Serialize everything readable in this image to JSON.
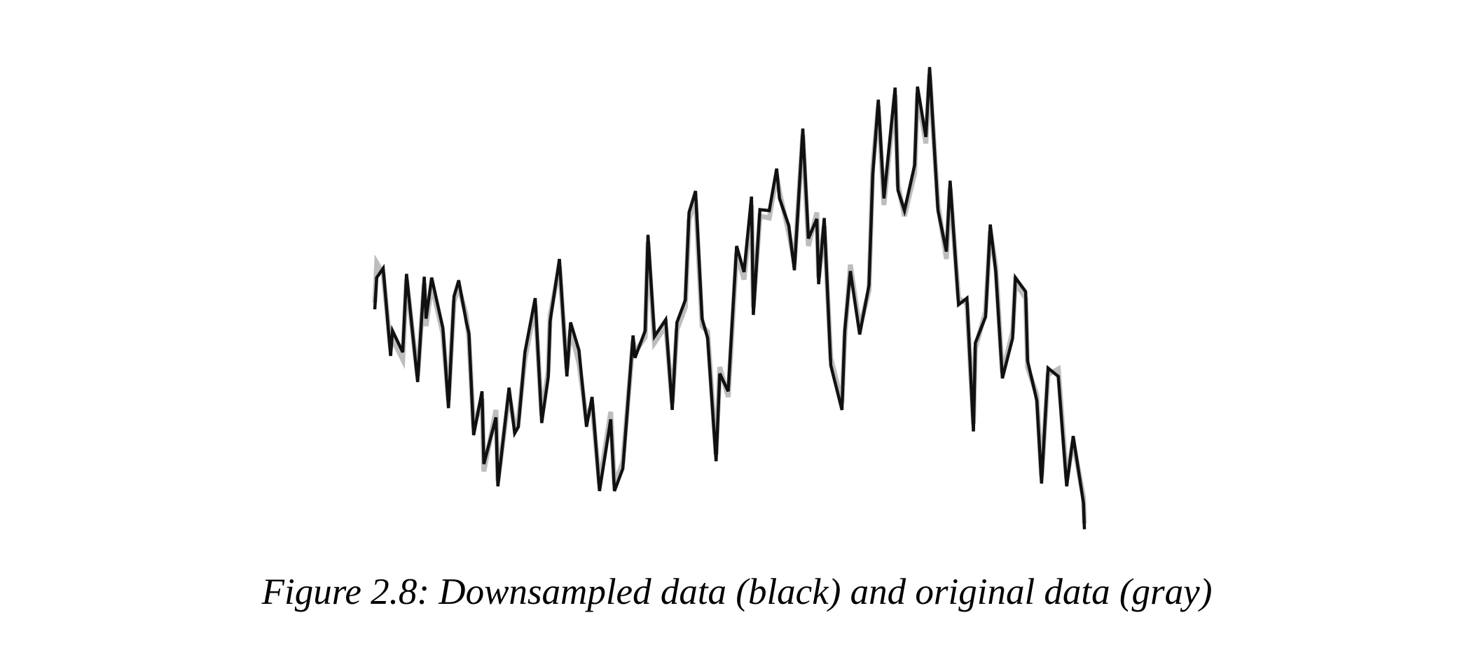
{
  "chart_data": {
    "type": "line",
    "caption": "Figure 2.8: Downsampled data (black) and original data (gray)",
    "x": [
      0,
      2,
      9,
      17,
      19,
      30,
      34,
      46,
      53,
      55,
      61,
      73,
      79,
      85,
      90,
      98,
      101,
      106,
      115,
      117,
      130,
      132,
      144,
      150,
      154,
      161,
      172,
      179,
      186,
      188,
      198,
      206,
      210,
      219,
      227,
      233,
      241,
      253,
      257,
      266,
      277,
      279,
      290,
      293,
      300,
      312,
      319,
      324,
      333,
      337,
      344,
      351,
      357,
      366,
      370,
      379,
      388,
      396,
      404,
      406,
      413,
      423,
      431,
      434,
      444,
      450,
      459,
      465,
      474,
      476,
      482,
      489,
      501,
      504,
      510,
      520,
      530,
      534,
      540,
      546,
      558,
      561,
      568,
      579,
      582,
      591,
      595,
      604,
      613,
      617,
      626,
      635,
      642,
      644,
      655,
      660,
      666,
      673,
      684,
      687,
      698,
      700,
      710,
      715,
      722,
      733,
      742,
      749,
      760,
      761
    ],
    "xlim": [
      0,
      761
    ],
    "ylim": [
      0,
      600
    ],
    "series": [
      {
        "name": "original data",
        "color": "#bdbdbd",
        "values": [
          275,
          318,
          306,
          226,
          236,
          214,
          300,
          196,
          296,
          250,
          294,
          242,
          170,
          276,
          292,
          262,
          236,
          141,
          172,
          94,
          160,
          84,
          176,
          143,
          150,
          214,
          272,
          154,
          202,
          262,
          314,
          204,
          246,
          210,
          150,
          166,
          80,
          158,
          80,
          104,
          234,
          222,
          238,
          340,
          232,
          250,
          168,
          246,
          270,
          364,
          386,
          250,
          244,
          112,
          206,
          174,
          328,
          300,
          380,
          270,
          368,
          366,
          412,
          394,
          350,
          318,
          455,
          336,
          372,
          302,
          358,
          216,
          168,
          238,
          316,
          248,
          288,
          420,
          486,
          380,
          498,
          402,
          368,
          414,
          500,
          446,
          520,
          380,
          322,
          398,
          280,
          274,
          145,
          226,
          266,
          352,
          314,
          200,
          244,
          296,
          280,
          206,
          176,
          88,
          198,
          204,
          86,
          126,
          66,
          38
        ]
      },
      {
        "name": "downsampled data",
        "color": "#111111",
        "values": [
          268,
          302,
          312,
          218,
          245,
          222,
          306,
          190,
          303,
          258,
          302,
          248,
          162,
          282,
          299,
          255,
          242,
          133,
          180,
          102,
          152,
          78,
          184,
          135,
          142,
          222,
          280,
          146,
          195,
          255,
          322,
          196,
          254,
          224,
          142,
          174,
          73,
          150,
          73,
          97,
          240,
          216,
          245,
          348,
          239,
          257,
          160,
          254,
          278,
          372,
          395,
          258,
          237,
          105,
          199,
          180,
          336,
          308,
          389,
          262,
          375,
          374,
          419,
          387,
          358,
          310,
          462,
          344,
          365,
          295,
          366,
          208,
          160,
          245,
          309,
          241,
          294,
          412,
          493,
          387,
          506,
          396,
          374,
          423,
          507,
          453,
          528,
          374,
          330,
          406,
          273,
          280,
          137,
          232,
          260,
          359,
          308,
          194,
          237,
          302,
          287,
          213,
          170,
          81,
          205,
          196,
          78,
          132,
          60,
          32
        ]
      }
    ]
  }
}
